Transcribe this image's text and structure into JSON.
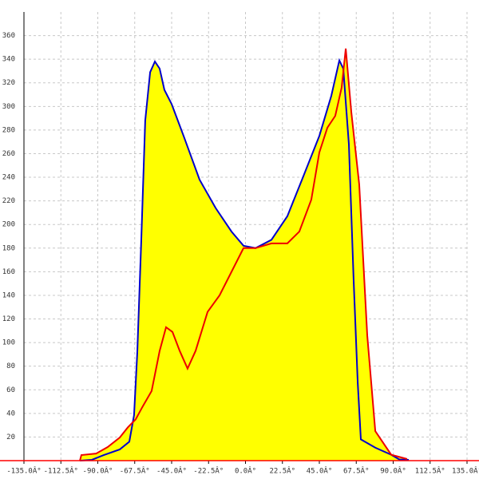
{
  "chart_data": {
    "type": "area-line",
    "xlim": [
      -135,
      135
    ],
    "ylim": [
      0,
      380
    ],
    "xticks": [
      {
        "value": -135,
        "label": "-135.0Â°"
      },
      {
        "value": -112.5,
        "label": "-112.5Â°"
      },
      {
        "value": -90,
        "label": "-90.0Â°"
      },
      {
        "value": -67.5,
        "label": "-67.5Â°"
      },
      {
        "value": -45,
        "label": "-45.0Â°"
      },
      {
        "value": -22.5,
        "label": "-22.5Â°"
      },
      {
        "value": 0,
        "label": "0.0Â°"
      },
      {
        "value": 22.5,
        "label": "22.5Â°"
      },
      {
        "value": 45,
        "label": "45.0Â°"
      },
      {
        "value": 67.5,
        "label": "67.5Â°"
      },
      {
        "value": 90,
        "label": "90.0Â°"
      },
      {
        "value": 112.5,
        "label": "112.5Â°"
      },
      {
        "value": 135,
        "label": "135.0Â°"
      }
    ],
    "yticks": [
      20,
      40,
      60,
      80,
      100,
      120,
      140,
      160,
      180,
      200,
      220,
      240,
      260,
      280,
      300,
      320,
      340,
      360
    ],
    "grid": true,
    "fill_color": "#ffff00",
    "axis_color": "#ff0000",
    "series": [
      {
        "color": "#0000cc",
        "x": [
          -100.9,
          -93.6,
          -86.4,
          -76.6,
          -70.8,
          -67.9,
          -65.9,
          -63.5,
          -61.1,
          -58.1,
          -55.2,
          -52.3,
          -49.4,
          -45.0,
          -37.7,
          -28.0,
          -18.2,
          -8.5,
          -1.2,
          6.1,
          15.8,
          25.5,
          35.3,
          45.0,
          52.3,
          57.2,
          59.6,
          63.0,
          65.9,
          68.4,
          70.3,
          79.1,
          88.8,
          93.7,
          99.5
        ],
        "values": [
          0,
          0.7,
          4.7,
          9.5,
          16,
          38.5,
          92.6,
          187,
          288,
          329,
          338,
          332,
          314,
          302,
          275,
          238,
          214,
          194,
          182,
          180,
          187,
          207,
          241,
          275,
          309,
          339,
          332,
          268,
          153,
          66,
          18,
          11,
          5,
          1,
          0.7
        ]
      },
      {
        "color": "#ee0000",
        "x": [
          -100.9,
          -100.0,
          -91.0,
          -84.0,
          -76.6,
          -71.8,
          -66.9,
          -63.0,
          -57.2,
          -52.3,
          -48.4,
          -44.5,
          -40.1,
          -35.3,
          -30.4,
          -23.1,
          -15.8,
          -8.5,
          -1.2,
          6.1,
          15.8,
          25.5,
          32.8,
          40.1,
          45.0,
          49.9,
          54.7,
          58.6,
          61.1,
          64.5,
          69.3,
          74.2,
          79.1,
          88.8,
          98.5
        ],
        "values": [
          0,
          4.7,
          6,
          11.5,
          19.6,
          28,
          35,
          45,
          59,
          93,
          113,
          109,
          93,
          78,
          93,
          126,
          140,
          160,
          180,
          180,
          184,
          184,
          194,
          221,
          261,
          282,
          292,
          316,
          349,
          295,
          234,
          106,
          25,
          5,
          1.4
        ]
      }
    ]
  }
}
